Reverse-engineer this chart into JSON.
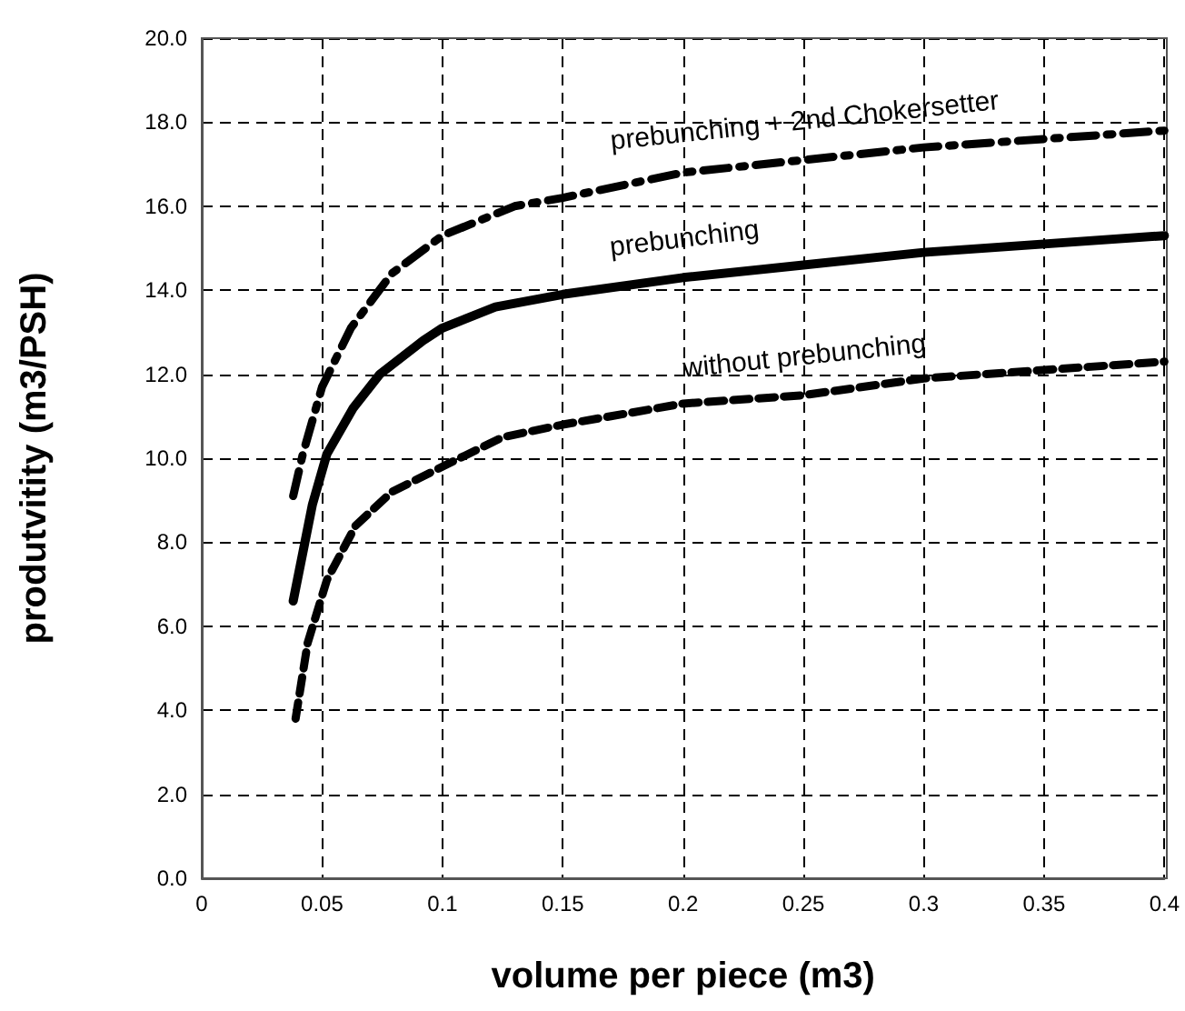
{
  "chart_data": {
    "type": "line",
    "xlabel": "volume per piece (m3)",
    "ylabel": "produtvitity (m3/PSH)",
    "xlim": [
      0,
      0.4
    ],
    "xticks": [
      0,
      0.05,
      0.1,
      0.15,
      0.2,
      0.25,
      0.3,
      0.35,
      0.4
    ],
    "ylim": [
      0,
      20
    ],
    "yticks": [
      {
        "value": 0,
        "label": "0.0"
      },
      {
        "value": 2,
        "label": "2.0"
      },
      {
        "value": 4,
        "label": "4.0"
      },
      {
        "value": 6,
        "label": "6.0"
      },
      {
        "value": 8,
        "label": "8.0"
      },
      {
        "value": 10,
        "label": "10.0"
      },
      {
        "value": 12,
        "label": "12.0"
      },
      {
        "value": 14,
        "label": "14.0"
      },
      {
        "value": 16,
        "label": "16.0"
      },
      {
        "value": 18,
        "label": "18.0"
      },
      {
        "value": 20,
        "label": "20.0"
      }
    ],
    "grid": true,
    "legend": false,
    "marker": "none",
    "series": [
      {
        "name": "prebunching + 2nd Chokersetter",
        "color": "#000000",
        "line_style": "dashdot",
        "x": [
          0.038,
          0.042,
          0.05,
          0.062,
          0.079,
          0.1,
          0.13,
          0.15,
          0.2,
          0.25,
          0.3,
          0.35,
          0.4
        ],
        "values": [
          9.1,
          10.1,
          11.7,
          13.1,
          14.4,
          15.3,
          16.0,
          16.2,
          16.8,
          17.1,
          17.4,
          17.6,
          17.8
        ]
      },
      {
        "name": "prebunching",
        "color": "#000000",
        "line_style": "solid",
        "x": [
          0.038,
          0.046,
          0.052,
          0.063,
          0.074,
          0.092,
          0.1,
          0.122,
          0.15,
          0.2,
          0.25,
          0.3,
          0.35,
          0.4
        ],
        "values": [
          6.6,
          8.9,
          10.1,
          11.2,
          12.0,
          12.8,
          13.1,
          13.6,
          13.9,
          14.3,
          14.6,
          14.9,
          15.1,
          15.3
        ]
      },
      {
        "name": "without prebunching",
        "color": "#000000",
        "line_style": "dashed",
        "x": [
          0.039,
          0.044,
          0.052,
          0.064,
          0.079,
          0.1,
          0.125,
          0.15,
          0.2,
          0.25,
          0.3,
          0.35,
          0.4
        ],
        "values": [
          3.8,
          5.6,
          7.1,
          8.4,
          9.2,
          9.8,
          10.5,
          10.8,
          11.3,
          11.5,
          11.9,
          12.1,
          12.3
        ]
      }
    ]
  }
}
